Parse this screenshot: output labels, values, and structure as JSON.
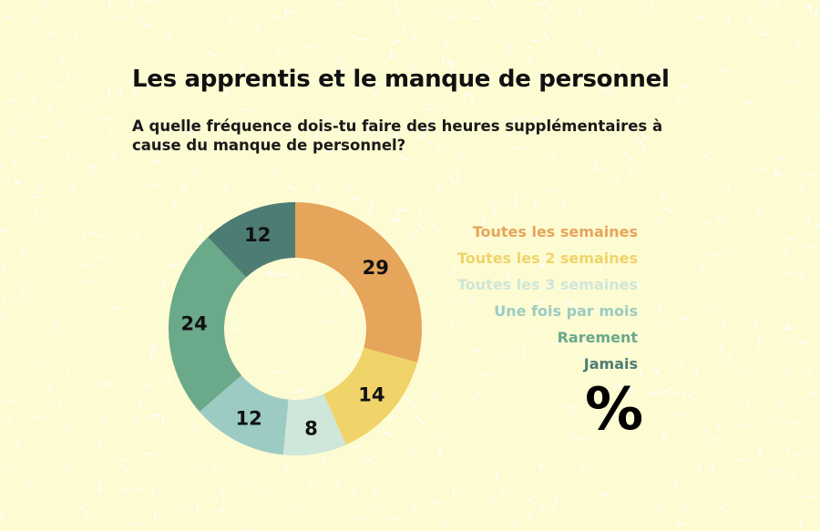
{
  "title": "Les apprentis et le manque de personnel",
  "subtitle": "A quelle fréquence dois-tu faire des heures supplémentaires à cause du manque de personnel?",
  "unit_symbol": "%",
  "colors": {
    "background": "#fdfbd2",
    "pattern": "#ffffff"
  },
  "chart_data": {
    "type": "pie",
    "variant": "donut",
    "title": "",
    "legend_placement": "right",
    "slices": [
      {
        "label": "Toutes les semaines",
        "value": 29,
        "color": "#e5a55a"
      },
      {
        "label": "Toutes les 2 semaines",
        "value": 14,
        "color": "#f0d46a"
      },
      {
        "label": "Toutes les 3 semaines",
        "value": 8,
        "color": "#cfe6da"
      },
      {
        "label": "Une fois par mois",
        "value": 12,
        "color": "#9ccbc3"
      },
      {
        "label": "Rarement",
        "value": 24,
        "color": "#6aa98a"
      },
      {
        "label": "Jamais",
        "value": 12,
        "color": "#4d7c74"
      }
    ]
  }
}
